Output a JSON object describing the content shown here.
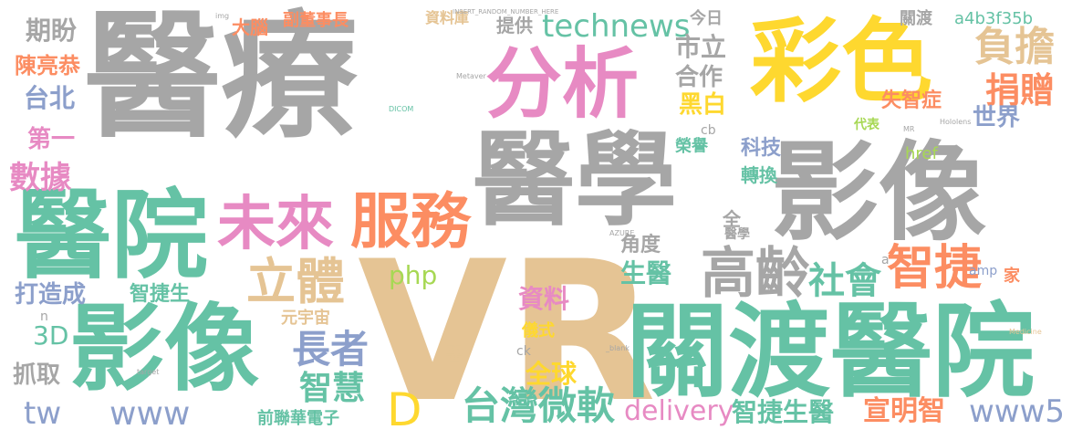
{
  "cloud_title": "",
  "colors": {
    "gray": "#a6a6a6",
    "teal": "#65c2a5",
    "orange": "#fc8d62",
    "violet": "#8c9fcb",
    "pink": "#e78ac3",
    "lime": "#a7d854",
    "yellow": "#fed82f",
    "tan": "#e5c494"
  },
  "words": {
    "w01": "醫療",
    "w02": "VR",
    "w03": "醫學",
    "w04": "影像",
    "w05": "影像",
    "w06": "關渡醫院",
    "w07": "醫院",
    "w08": "彩色",
    "w09": "分析",
    "w10": "未來",
    "w11": "服務",
    "w12": "高齡",
    "w13": "立體",
    "w14": "智捷",
    "w15": "台灣微軟",
    "w16": "technews",
    "w17": "負擔",
    "w18": "捐贈",
    "w19": "長者",
    "w20": "智慧",
    "w21": "社會",
    "w22": "數據",
    "w23": "期盼",
    "w24": "陳亮恭",
    "w25": "台北",
    "w26": "第一",
    "w27": "www",
    "w28": "www5",
    "w29": "delivery",
    "w30": "智捷生醫",
    "w31": "宣明智",
    "w32": "D",
    "w33": "php",
    "w34": "資料",
    "w35": "全球",
    "w36": "生醫",
    "w37": "打造成",
    "w38": "抓取",
    "w39": "tw",
    "w40": "3D",
    "w41": "市立",
    "w42": "合作",
    "w43": "黑白",
    "w44": "世界",
    "w45": "失智症",
    "w46": "科技",
    "w47": "轉換",
    "w48": "角度",
    "w49": "智捷生",
    "w50": "元宇宙",
    "w51": "前聯華電子",
    "w52": "副董事長",
    "w53": "大腦",
    "w54": "提供",
    "w55": "資料庫",
    "w56": "今日",
    "w57": "關渡",
    "w58": "a4b3f35b",
    "w59": "榮譽",
    "w60": "href",
    "w61": "全",
    "w62": "醫學",
    "w63": "儀式",
    "w64": "amp",
    "w65": "家",
    "w66": "代表",
    "w67": "cb",
    "w68": "ck",
    "w69": "醫",
    "w70": "n",
    "w71": "a",
    "w72": "INSERT_RANDOM_NUMBER_HERE",
    "w73": "DICOM",
    "w74": "Metaver",
    "w75": "Hololens",
    "w76": "AZURE",
    "w77": "_blank",
    "w78": "Medicine",
    "w79": "MR",
    "w80": "img",
    "w81": "target"
  }
}
